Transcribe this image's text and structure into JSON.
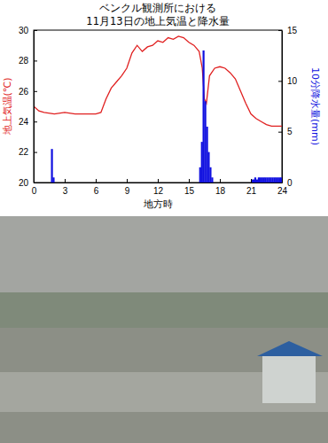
{
  "chart_data": {
    "type": "line",
    "title": [
      "ベンクル観測所における",
      "11月13日の地上気温と降水量"
    ],
    "x_label": "地方時",
    "y_label": "地上気温(℃)",
    "y2_label": "10分降水量(mm)",
    "xlim": [
      0,
      24
    ],
    "xticks": [
      0,
      3,
      6,
      9,
      12,
      15,
      18,
      21,
      24
    ],
    "ylim": [
      20,
      30
    ],
    "yticks": [
      20,
      22,
      24,
      26,
      28,
      30
    ],
    "y2lim": [
      0,
      15
    ],
    "y2ticks": [
      0,
      5,
      10,
      15
    ],
    "series": [
      {
        "type": "line",
        "color": "#e02020",
        "x": [
          0,
          0.5,
          1,
          2,
          3,
          4,
          5,
          6,
          6.5,
          7,
          7.5,
          8,
          8.5,
          9,
          9.5,
          10,
          10.5,
          11,
          11.5,
          12,
          12.5,
          13,
          13.5,
          14,
          14.5,
          15,
          15.5,
          16,
          16.3,
          16.5,
          16.7,
          17,
          17.5,
          18,
          18.5,
          19,
          19.5,
          20,
          20.5,
          21,
          21.5,
          22,
          22.5,
          23,
          24
        ],
        "values": [
          25.0,
          24.7,
          24.6,
          24.5,
          24.6,
          24.5,
          24.5,
          24.5,
          24.6,
          25.5,
          26.2,
          26.6,
          27.0,
          27.5,
          28.5,
          29.0,
          28.6,
          28.9,
          29.0,
          29.3,
          29.2,
          29.5,
          29.4,
          29.6,
          29.5,
          29.2,
          29.0,
          28.6,
          27.5,
          25.5,
          25.2,
          27.0,
          27.5,
          27.6,
          27.5,
          27.2,
          26.8,
          26.0,
          25.2,
          24.5,
          24.2,
          24.0,
          23.8,
          23.7,
          23.7
        ]
      },
      {
        "type": "bar",
        "color": "#1010e0",
        "axis": "y2",
        "x": [
          1.67,
          1.83,
          16.0,
          16.17,
          16.33,
          16.5,
          16.67,
          16.83,
          17.0,
          17.17,
          21.0,
          21.17,
          21.33,
          21.5,
          21.67,
          21.83,
          22.0,
          22.17,
          22.33,
          22.5,
          22.67,
          22.83,
          23.0,
          23.17,
          23.33,
          23.5,
          23.67,
          23.83
        ],
        "values": [
          3.3,
          0.5,
          1.5,
          4.0,
          13.0,
          8.0,
          5.5,
          3.0,
          1.5,
          0.5,
          0.3,
          0.3,
          0.5,
          0.3,
          0.5,
          0.5,
          0.5,
          0.5,
          0.5,
          0.5,
          0.5,
          0.5,
          0.5,
          0.5,
          0.5,
          0.5,
          0.5,
          0.5
        ]
      }
    ]
  }
}
